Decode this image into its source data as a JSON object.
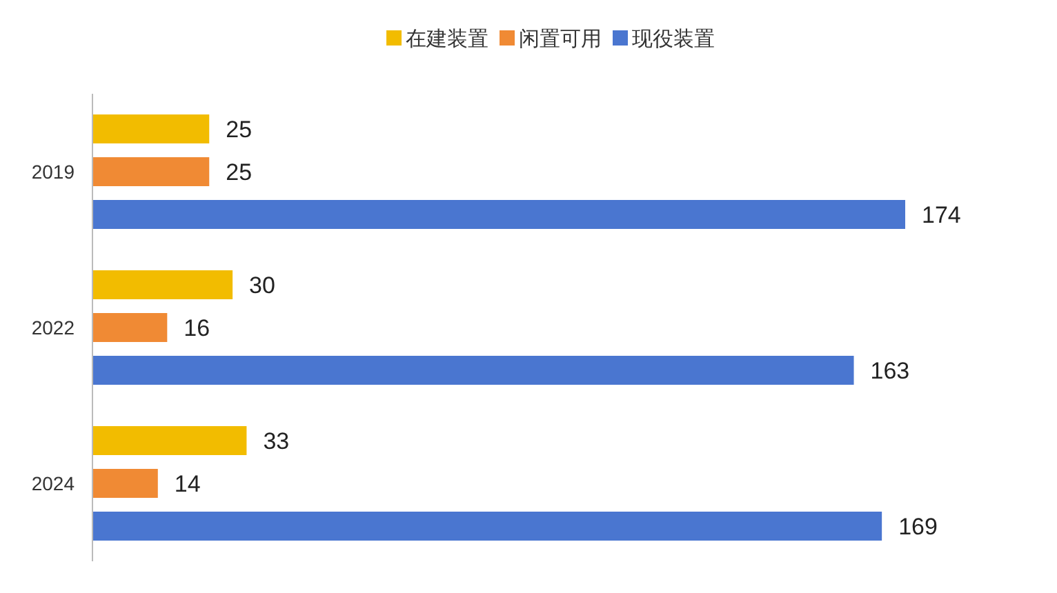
{
  "chart_data": {
    "type": "bar",
    "orientation": "horizontal",
    "categories": [
      "2019",
      "2022",
      "2024"
    ],
    "series": [
      {
        "name": "在建装置",
        "color": "#f2bc00",
        "values": [
          25,
          30,
          33
        ]
      },
      {
        "name": "闲置可用",
        "color": "#f08a34",
        "values": [
          25,
          16,
          14
        ]
      },
      {
        "name": "现役装置",
        "color": "#4a76d0",
        "values": [
          174,
          163,
          169
        ]
      }
    ],
    "data_labels": true,
    "legend": "top"
  }
}
